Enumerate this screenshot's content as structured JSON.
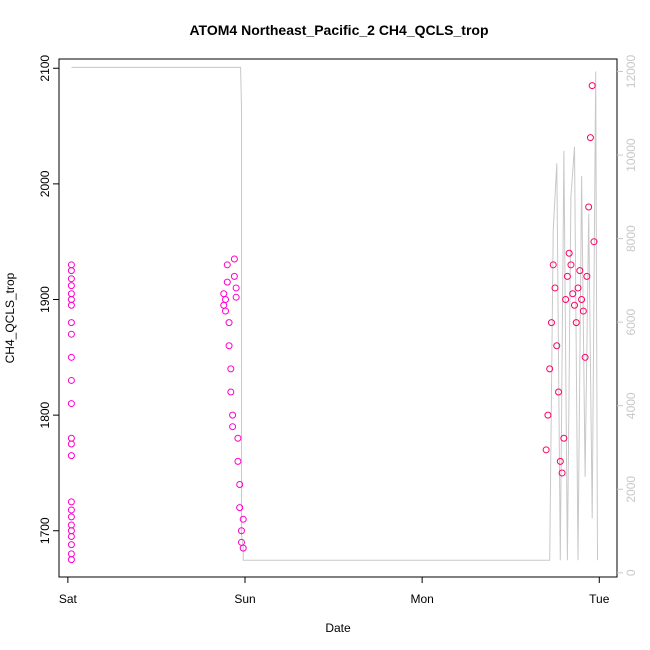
{
  "chart_data": {
    "type": "scatter",
    "title": "ATOM4 Northeast_Pacific_2 CH4_QCLS_trop",
    "xlabel": "Date",
    "ylabel": "CH4_QCLS_trop",
    "x_ticks": [
      "Sat",
      "Sun",
      "Mon",
      "Tue"
    ],
    "y_ticks": [
      1700,
      1800,
      1900,
      2000,
      2100
    ],
    "y2_ticks": [
      0,
      2000,
      4000,
      6000,
      8000,
      10000,
      12000
    ],
    "xlim_days": [
      -0.05,
      3.1
    ],
    "ylim": [
      1660,
      2108
    ],
    "y2lim": [
      -100,
      12300
    ],
    "grid": false,
    "colors": {
      "points_early": "#ff00cc",
      "points_late": "#ff0066",
      "altitude_line": "#c8c8c8",
      "axes": "#000000"
    },
    "series": [
      {
        "type": "scatter",
        "segments": [
          {
            "x": [
              0.02,
              0.02,
              0.02,
              0.02,
              0.02,
              0.02,
              0.02,
              0.02,
              0.02,
              0.02,
              0.02,
              0.02,
              0.02,
              0.02,
              0.02,
              0.02,
              0.02,
              0.02,
              0.02,
              0.02,
              0.02,
              0.02,
              0.02,
              0.02
            ],
            "y": [
              1675,
              1680,
              1688,
              1695,
              1700,
              1705,
              1712,
              1718,
              1725,
              1765,
              1775,
              1780,
              1810,
              1830,
              1850,
              1870,
              1880,
              1895,
              1900,
              1905,
              1912,
              1918,
              1925,
              1930
            ]
          },
          {
            "x": [
              0.88,
              0.88,
              0.89,
              0.89,
              0.9,
              0.9,
              0.91,
              0.91,
              0.92,
              0.92,
              0.93,
              0.93,
              0.94,
              0.94,
              0.95,
              0.95,
              0.96,
              0.96,
              0.97,
              0.97,
              0.98,
              0.98,
              0.99,
              0.99
            ],
            "y": [
              1895,
              1905,
              1890,
              1900,
              1915,
              1930,
              1880,
              1860,
              1840,
              1820,
              1800,
              1790,
              1920,
              1935,
              1910,
              1902,
              1780,
              1760,
              1740,
              1720,
              1700,
              1690,
              1685,
              1710
            ]
          },
          {
            "x": [
              2.7,
              2.71,
              2.72,
              2.73,
              2.74,
              2.75,
              2.76,
              2.77,
              2.78,
              2.79,
              2.8,
              2.81,
              2.82,
              2.83,
              2.84,
              2.85,
              2.86,
              2.87,
              2.88,
              2.89,
              2.9,
              2.91,
              2.92,
              2.93,
              2.94,
              2.95,
              2.96,
              2.97
            ],
            "y": [
              1770,
              1800,
              1840,
              1880,
              1930,
              1910,
              1860,
              1820,
              1760,
              1750,
              1780,
              1900,
              1920,
              1940,
              1930,
              1905,
              1895,
              1880,
              1910,
              1925,
              1900,
              1890,
              1850,
              1920,
              1980,
              2040,
              2085,
              1950
            ]
          }
        ]
      },
      {
        "type": "line",
        "name": "",
        "x": [
          0.02,
          0.025,
          0.03,
          0.97,
          0.975,
          0.98,
          0.98,
          0.99,
          0.99,
          2.72,
          2.74,
          2.76,
          2.78,
          2.8,
          2.82,
          2.84,
          2.86,
          2.88,
          2.9,
          2.92,
          2.94,
          2.96,
          2.98,
          2.99
        ],
        "y2": [
          12100,
          12100,
          12100,
          12100,
          12100,
          11100,
          900,
          600,
          300,
          300,
          8200,
          9800,
          300,
          10100,
          300,
          9000,
          10200,
          300,
          9500,
          2300,
          8600,
          1300,
          12000,
          300
        ]
      }
    ]
  }
}
